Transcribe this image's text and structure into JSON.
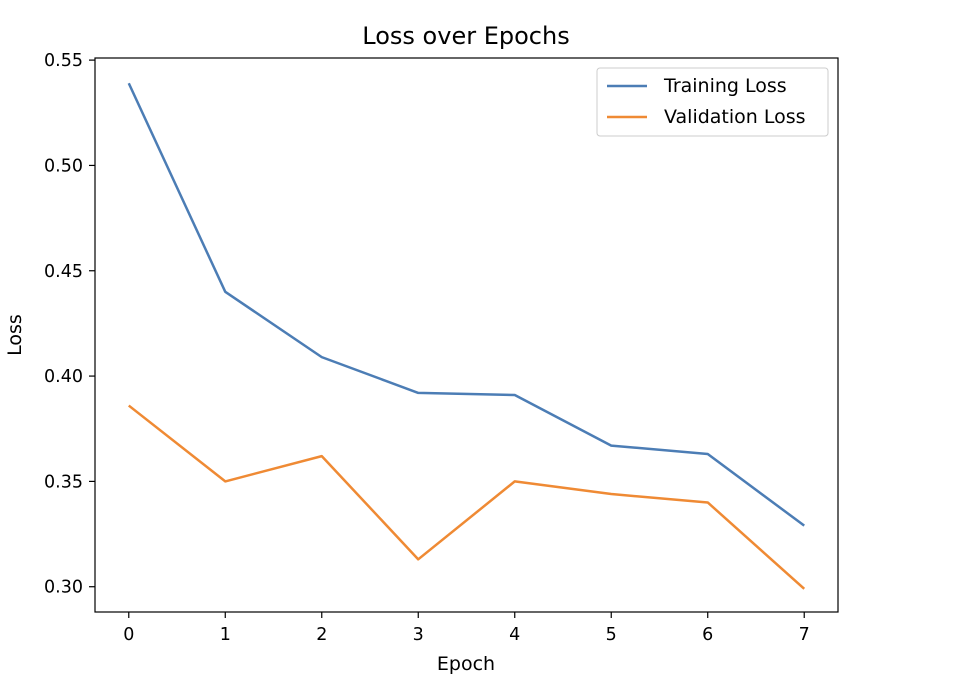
{
  "chart_data": {
    "type": "line",
    "title": "Loss over Epochs",
    "xlabel": "Epoch",
    "ylabel": "Loss",
    "x": [
      0,
      1,
      2,
      3,
      4,
      5,
      6,
      7
    ],
    "xticks": [
      "0",
      "1",
      "2",
      "3",
      "4",
      "5",
      "6",
      "7"
    ],
    "yticks": [
      "0.30",
      "0.35",
      "0.40",
      "0.45",
      "0.50",
      "0.55"
    ],
    "ylim": [
      0.288,
      0.551
    ],
    "xlim": [
      -0.35,
      7.35
    ],
    "grid": false,
    "legend_position": "top-right",
    "series": [
      {
        "name": "Training Loss",
        "color": "#4c7db5",
        "values": [
          0.539,
          0.44,
          0.409,
          0.392,
          0.391,
          0.367,
          0.363,
          0.329
        ]
      },
      {
        "name": "Validation Loss",
        "color": "#ef8a34",
        "values": [
          0.386,
          0.35,
          0.362,
          0.313,
          0.35,
          0.344,
          0.34,
          0.299
        ]
      }
    ]
  }
}
